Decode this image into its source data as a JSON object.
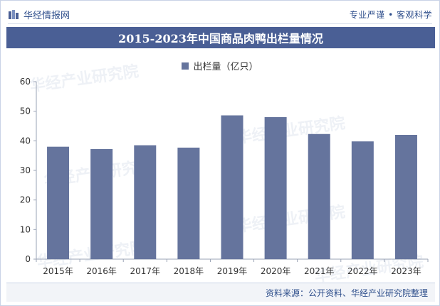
{
  "header": {
    "brand": "华经情报网",
    "tagline": "专业严谨 • 客观科学"
  },
  "watermark": "华经产业研究院",
  "chart_data": {
    "type": "bar",
    "title": "2015-2023年中国商品肉鸭出栏量情况",
    "legend": [
      "出栏量（亿只）"
    ],
    "categories": [
      "2015年",
      "2016年",
      "2017年",
      "2018年",
      "2019年",
      "2020年",
      "2021年",
      "2022年",
      "2023年"
    ],
    "series": [
      {
        "name": "出栏量（亿只）",
        "values": [
          38.0,
          37.2,
          38.5,
          37.7,
          48.6,
          48.0,
          42.3,
          39.8,
          42.0
        ]
      }
    ],
    "yticks": [
      "0",
      "10",
      "20",
      "30",
      "40",
      "50",
      "60"
    ],
    "ylim": [
      0,
      60
    ],
    "xlabel": "",
    "ylabel": "",
    "bar_color": "#65749d",
    "legend_position": "top-center"
  },
  "footer": {
    "source": "资料来源：公开资料、华经产业研究院整理"
  },
  "colors": {
    "title_bg": "#4a5f95",
    "bar": "#65749d",
    "brand": "#2f4f8c"
  }
}
